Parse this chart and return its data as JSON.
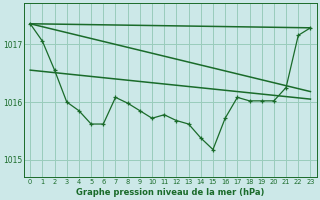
{
  "title": "Graphe pression niveau de la mer (hPa)",
  "background_color": "#cce8e8",
  "grid_color": "#99ccbb",
  "line_color": "#1a6b2a",
  "xlim": [
    -0.5,
    23.5
  ],
  "ylim": [
    1014.7,
    1017.7
  ],
  "yticks": [
    1015,
    1016,
    1017
  ],
  "xticks": [
    0,
    1,
    2,
    3,
    4,
    5,
    6,
    7,
    8,
    9,
    10,
    11,
    12,
    13,
    14,
    15,
    16,
    17,
    18,
    19,
    20,
    21,
    22,
    23
  ],
  "series_main_x": [
    0,
    1,
    2,
    3,
    4,
    5,
    6,
    7,
    8,
    9,
    10,
    11,
    12,
    13,
    14,
    15,
    16,
    17,
    18,
    19,
    20,
    21,
    22,
    23
  ],
  "series_main_y": [
    1017.35,
    1017.05,
    1016.55,
    1016.0,
    1015.85,
    1015.62,
    1015.62,
    1016.08,
    1015.98,
    1015.85,
    1015.72,
    1015.78,
    1015.68,
    1015.62,
    1015.38,
    1015.18,
    1015.72,
    1016.08,
    1016.02,
    1016.02,
    1016.02,
    1016.25,
    1017.15,
    1017.28
  ],
  "line1_x": [
    0,
    23
  ],
  "line1_y": [
    1017.35,
    1017.28
  ],
  "line2_x": [
    0,
    23
  ],
  "line2_y": [
    1017.35,
    1016.18
  ],
  "line3_x": [
    0,
    23
  ],
  "line3_y": [
    1016.55,
    1016.05
  ]
}
